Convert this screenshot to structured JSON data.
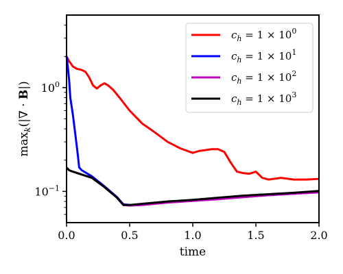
{
  "chart_data": {
    "type": "line",
    "title": "",
    "xlabel": "time",
    "ylabel": "max_k(|∇ · B|)",
    "xlim": [
      0.0,
      2.0
    ],
    "ylim": [
      0.05,
      5.0
    ],
    "yscale": "log",
    "grid": false,
    "legend_position": "top-right",
    "x_ticks": [
      {
        "value": 0.0,
        "label": "0.0"
      },
      {
        "value": 0.5,
        "label": "0.5"
      },
      {
        "value": 1.0,
        "label": "1.0"
      },
      {
        "value": 1.5,
        "label": "1.5"
      },
      {
        "value": 2.0,
        "label": "2.0"
      }
    ],
    "y_ticks": [
      {
        "value": 0.1,
        "base": "10",
        "exp": "−1"
      },
      {
        "value": 1.0,
        "base": "10",
        "exp": "0"
      }
    ],
    "series": [
      {
        "name": "c_h = 1 × 10^0",
        "legend": {
          "coef": "c",
          "sub": "h",
          "eq": " = 1 × 10",
          "exp": "0"
        },
        "color": "#ff0000",
        "x": [
          0,
          0.02,
          0.05,
          0.08,
          0.12,
          0.15,
          0.18,
          0.21,
          0.24,
          0.27,
          0.3,
          0.33,
          0.37,
          0.42,
          0.5,
          0.6,
          0.7,
          0.8,
          0.9,
          1.0,
          1.05,
          1.1,
          1.15,
          1.2,
          1.25,
          1.3,
          1.35,
          1.4,
          1.45,
          1.5,
          1.55,
          1.6,
          1.7,
          1.8,
          1.9,
          2.0
        ],
        "y": [
          2.0,
          1.8,
          1.6,
          1.52,
          1.48,
          1.42,
          1.25,
          1.05,
          0.98,
          1.05,
          1.1,
          1.05,
          0.95,
          0.8,
          0.6,
          0.45,
          0.37,
          0.3,
          0.26,
          0.235,
          0.245,
          0.25,
          0.255,
          0.255,
          0.24,
          0.19,
          0.155,
          0.15,
          0.148,
          0.155,
          0.135,
          0.13,
          0.135,
          0.13,
          0.13,
          0.132
        ]
      },
      {
        "name": "c_h = 1 × 10^1",
        "legend": {
          "coef": "c",
          "sub": "h",
          "eq": " = 1 × 10",
          "exp": "1"
        },
        "color": "#0000ff",
        "x": [
          0,
          0.01,
          0.02,
          0.03,
          0.05,
          0.07,
          0.09,
          0.1,
          0.11,
          0.12,
          0.2,
          0.3,
          0.4,
          0.45,
          0.5,
          0.6,
          0.8,
          1.0,
          1.2,
          1.4,
          1.6,
          1.8,
          2.0
        ],
        "y": [
          2.0,
          1.6,
          1.2,
          0.8,
          0.55,
          0.35,
          0.22,
          0.17,
          0.165,
          0.16,
          0.14,
          0.112,
          0.088,
          0.075,
          0.074,
          0.075,
          0.079,
          0.082,
          0.085,
          0.088,
          0.092,
          0.095,
          0.098
        ]
      },
      {
        "name": "c_h = 1 × 10^2",
        "legend": {
          "coef": "c",
          "sub": "h",
          "eq": " = 1 × 10",
          "exp": "2"
        },
        "color": "#bf00bf",
        "x": [
          0,
          0.02,
          0.05,
          0.1,
          0.2,
          0.3,
          0.4,
          0.45,
          0.5,
          0.6,
          0.8,
          1.0,
          1.2,
          1.4,
          1.6,
          1.8,
          2.0
        ],
        "y": [
          0.17,
          0.16,
          0.155,
          0.148,
          0.135,
          0.11,
          0.087,
          0.074,
          0.073,
          0.074,
          0.078,
          0.081,
          0.084,
          0.088,
          0.092,
          0.095,
          0.098
        ]
      },
      {
        "name": "c_h = 1 × 10^3",
        "legend": {
          "coef": "c",
          "sub": "h",
          "eq": " = 1 × 10",
          "exp": "3"
        },
        "color": "#000000",
        "x": [
          0,
          0.02,
          0.05,
          0.1,
          0.2,
          0.3,
          0.4,
          0.45,
          0.5,
          0.6,
          0.8,
          1.0,
          1.2,
          1.4,
          1.6,
          1.8,
          2.0
        ],
        "y": [
          0.17,
          0.16,
          0.155,
          0.148,
          0.135,
          0.11,
          0.087,
          0.074,
          0.074,
          0.076,
          0.08,
          0.083,
          0.087,
          0.091,
          0.094,
          0.097,
          0.101
        ]
      }
    ]
  }
}
